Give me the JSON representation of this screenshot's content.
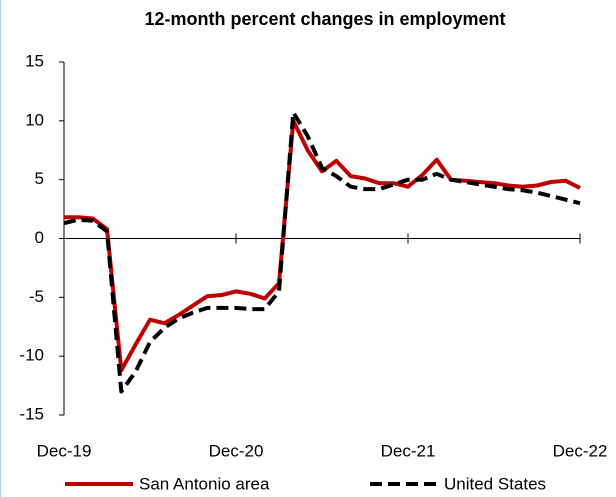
{
  "chart_data": {
    "type": "line",
    "title": "12-month percent changes in employment",
    "categories": [
      "Dec-19",
      null,
      null,
      null,
      null,
      null,
      null,
      null,
      null,
      null,
      null,
      null,
      "Dec-20",
      null,
      null,
      null,
      null,
      null,
      null,
      null,
      null,
      null,
      null,
      null,
      "Dec-21",
      null,
      null,
      null,
      null,
      null,
      null,
      null,
      null,
      null,
      null,
      null,
      "Dec-22"
    ],
    "series": [
      {
        "name": "San Antonio area",
        "color": "#c00000",
        "dash": false,
        "values": [
          1.8,
          1.8,
          1.7,
          0.8,
          -11.2,
          -9.0,
          -6.9,
          -7.2,
          -6.5,
          -5.7,
          -4.9,
          -4.8,
          -4.5,
          -4.7,
          -5.1,
          -3.8,
          10.0,
          7.5,
          5.7,
          6.6,
          5.3,
          5.1,
          4.7,
          4.7,
          4.4,
          5.4,
          6.7,
          5.0,
          4.9,
          4.8,
          4.7,
          4.5,
          4.4,
          4.5,
          4.8,
          4.9,
          4.3
        ]
      },
      {
        "name": "United States",
        "color": "#000000",
        "dash": true,
        "values": [
          1.3,
          1.6,
          1.5,
          0.6,
          -13.0,
          -11.3,
          -8.8,
          -7.6,
          -6.8,
          -6.3,
          -5.9,
          -5.9,
          -5.9,
          -6.0,
          -6.0,
          -4.5,
          10.7,
          8.7,
          6.0,
          5.3,
          4.4,
          4.2,
          4.2,
          4.6,
          5.0,
          5.0,
          5.5,
          5.0,
          4.8,
          4.6,
          4.4,
          4.2,
          4.1,
          3.9,
          3.6,
          3.3,
          3.0
        ]
      }
    ],
    "ylim": [
      -15,
      15
    ],
    "yticks": [
      -15,
      -10,
      -5,
      0,
      5,
      10,
      15
    ],
    "grid": false
  }
}
